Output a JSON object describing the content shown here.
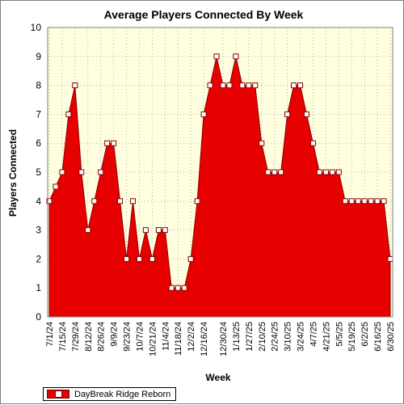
{
  "chart_data": {
    "type": "area",
    "title": "Average Players Connected By Week",
    "xlabel": "Week",
    "ylabel": "Players Connected",
    "ylim": [
      0,
      10
    ],
    "yticks": [
      0,
      1,
      2,
      3,
      4,
      5,
      6,
      7,
      8,
      9,
      10
    ],
    "grid": true,
    "legend_position": "bottom-left",
    "x_tick_labels": [
      "7/1/24",
      "7/15/24",
      "7/29/24",
      "8/12/24",
      "8/26/24",
      "9/9/24",
      "9/23/24",
      "10/7/24",
      "10/21/24",
      "11/4/24",
      "11/18/24",
      "12/2/24",
      "12/16/24",
      "12/30/24",
      "1/13/25",
      "1/27/25",
      "2/10/25",
      "2/24/25",
      "3/10/25",
      "3/24/25",
      "4/7/25",
      "4/21/25",
      "5/5/25",
      "5/19/25",
      "6/2/25",
      "6/16/25",
      "6/30/25"
    ],
    "series": [
      {
        "name": "DayBreak Ridge Reborn",
        "color": "#e60000",
        "values": [
          4,
          4.5,
          5,
          7,
          8,
          5,
          3,
          4,
          5,
          6,
          6,
          4,
          2,
          4,
          2,
          3,
          2,
          3,
          3,
          1,
          1,
          1,
          2,
          4,
          7,
          8,
          9,
          8,
          8,
          9,
          8,
          8,
          8,
          6,
          5,
          5,
          5,
          7,
          8,
          8,
          7,
          6,
          5,
          5,
          5,
          5,
          4,
          4,
          4,
          4,
          4,
          4,
          4,
          2
        ]
      }
    ]
  },
  "legend": {
    "label": "DayBreak Ridge Reborn"
  }
}
